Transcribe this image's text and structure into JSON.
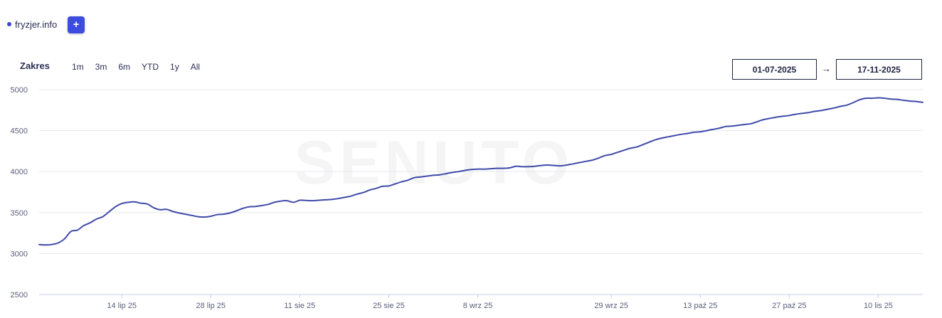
{
  "legend": {
    "label": "fryzjer.info",
    "color": "#3b46d6"
  },
  "add_button": {
    "label": "+"
  },
  "range": {
    "title": "Zakres",
    "options": [
      "1m",
      "3m",
      "6m",
      "YTD",
      "1y",
      "All"
    ]
  },
  "date_range": {
    "from": "01-07-2025",
    "arrow": "→",
    "to": "17-11-2025"
  },
  "watermark": "SENUTO",
  "chart_data": {
    "type": "line",
    "title": "",
    "xlabel": "",
    "ylabel": "",
    "ylim": [
      2500,
      5000
    ],
    "y_ticks": [
      2500,
      3000,
      3500,
      4000,
      4500,
      5000
    ],
    "grid": true,
    "line_color": "#3f4aa8",
    "x_start": "2025-07-01",
    "x_end": "2025-11-17",
    "x_ticks": [
      {
        "date": "2025-07-14",
        "label": "14 lip 25"
      },
      {
        "date": "2025-07-28",
        "label": "28 lip 25"
      },
      {
        "date": "2025-08-11",
        "label": "11 sie 25"
      },
      {
        "date": "2025-08-25",
        "label": "25 sie 25"
      },
      {
        "date": "2025-09-08",
        "label": "8 wrz 25"
      },
      {
        "date": "2025-09-29",
        "label": "29 wrz 25"
      },
      {
        "date": "2025-10-13",
        "label": "13 paź 25"
      },
      {
        "date": "2025-10-27",
        "label": "27 paź 25"
      },
      {
        "date": "2025-11-10",
        "label": "10 lis 25"
      }
    ],
    "series": [
      {
        "points": [
          [
            "2025-07-01",
            3110
          ],
          [
            "2025-07-02",
            3105
          ],
          [
            "2025-07-03",
            3110
          ],
          [
            "2025-07-04",
            3130
          ],
          [
            "2025-07-05",
            3180
          ],
          [
            "2025-07-06",
            3270
          ],
          [
            "2025-07-07",
            3285
          ],
          [
            "2025-07-08",
            3340
          ],
          [
            "2025-07-09",
            3375
          ],
          [
            "2025-07-10",
            3420
          ],
          [
            "2025-07-11",
            3450
          ],
          [
            "2025-07-12",
            3510
          ],
          [
            "2025-07-13",
            3570
          ],
          [
            "2025-07-14",
            3610
          ],
          [
            "2025-07-15",
            3625
          ],
          [
            "2025-07-16",
            3630
          ],
          [
            "2025-07-17",
            3615
          ],
          [
            "2025-07-18",
            3605
          ],
          [
            "2025-07-19",
            3560
          ],
          [
            "2025-07-20",
            3535
          ],
          [
            "2025-07-21",
            3540
          ],
          [
            "2025-07-22",
            3515
          ],
          [
            "2025-07-23",
            3495
          ],
          [
            "2025-07-24",
            3480
          ],
          [
            "2025-07-25",
            3465
          ],
          [
            "2025-07-26",
            3450
          ],
          [
            "2025-07-27",
            3445
          ],
          [
            "2025-07-28",
            3455
          ],
          [
            "2025-07-29",
            3475
          ],
          [
            "2025-07-30",
            3480
          ],
          [
            "2025-07-31",
            3495
          ],
          [
            "2025-08-01",
            3520
          ],
          [
            "2025-08-02",
            3550
          ],
          [
            "2025-08-03",
            3570
          ],
          [
            "2025-08-04",
            3575
          ],
          [
            "2025-08-05",
            3585
          ],
          [
            "2025-08-06",
            3600
          ],
          [
            "2025-08-07",
            3625
          ],
          [
            "2025-08-08",
            3640
          ],
          [
            "2025-08-09",
            3645
          ],
          [
            "2025-08-10",
            3625
          ],
          [
            "2025-08-11",
            3650
          ],
          [
            "2025-08-12",
            3648
          ],
          [
            "2025-08-13",
            3645
          ],
          [
            "2025-08-14",
            3650
          ],
          [
            "2025-08-15",
            3655
          ],
          [
            "2025-08-16",
            3660
          ],
          [
            "2025-08-17",
            3670
          ],
          [
            "2025-08-18",
            3685
          ],
          [
            "2025-08-19",
            3700
          ],
          [
            "2025-08-20",
            3725
          ],
          [
            "2025-08-21",
            3745
          ],
          [
            "2025-08-22",
            3775
          ],
          [
            "2025-08-23",
            3795
          ],
          [
            "2025-08-24",
            3820
          ],
          [
            "2025-08-25",
            3825
          ],
          [
            "2025-08-26",
            3850
          ],
          [
            "2025-08-27",
            3875
          ],
          [
            "2025-08-28",
            3895
          ],
          [
            "2025-08-29",
            3925
          ],
          [
            "2025-08-30",
            3935
          ],
          [
            "2025-08-31",
            3945
          ],
          [
            "2025-09-01",
            3955
          ],
          [
            "2025-09-02",
            3960
          ],
          [
            "2025-09-03",
            3975
          ],
          [
            "2025-09-04",
            3990
          ],
          [
            "2025-09-05",
            4000
          ],
          [
            "2025-09-06",
            4015
          ],
          [
            "2025-09-07",
            4025
          ],
          [
            "2025-09-08",
            4030
          ],
          [
            "2025-09-09",
            4030
          ],
          [
            "2025-09-10",
            4035
          ],
          [
            "2025-09-11",
            4040
          ],
          [
            "2025-09-12",
            4040
          ],
          [
            "2025-09-13",
            4045
          ],
          [
            "2025-09-14",
            4065
          ],
          [
            "2025-09-15",
            4060
          ],
          [
            "2025-09-16",
            4060
          ],
          [
            "2025-09-17",
            4065
          ],
          [
            "2025-09-18",
            4075
          ],
          [
            "2025-09-19",
            4080
          ],
          [
            "2025-09-20",
            4075
          ],
          [
            "2025-09-21",
            4070
          ],
          [
            "2025-09-22",
            4080
          ],
          [
            "2025-09-23",
            4095
          ],
          [
            "2025-09-24",
            4110
          ],
          [
            "2025-09-25",
            4125
          ],
          [
            "2025-09-26",
            4140
          ],
          [
            "2025-09-27",
            4165
          ],
          [
            "2025-09-28",
            4195
          ],
          [
            "2025-09-29",
            4210
          ],
          [
            "2025-09-30",
            4235
          ],
          [
            "2025-10-01",
            4260
          ],
          [
            "2025-10-02",
            4285
          ],
          [
            "2025-10-03",
            4300
          ],
          [
            "2025-10-04",
            4330
          ],
          [
            "2025-10-05",
            4360
          ],
          [
            "2025-10-06",
            4390
          ],
          [
            "2025-10-07",
            4410
          ],
          [
            "2025-10-08",
            4425
          ],
          [
            "2025-10-09",
            4440
          ],
          [
            "2025-10-10",
            4455
          ],
          [
            "2025-10-11",
            4465
          ],
          [
            "2025-10-12",
            4480
          ],
          [
            "2025-10-13",
            4485
          ],
          [
            "2025-10-14",
            4500
          ],
          [
            "2025-10-15",
            4515
          ],
          [
            "2025-10-16",
            4530
          ],
          [
            "2025-10-17",
            4550
          ],
          [
            "2025-10-18",
            4555
          ],
          [
            "2025-10-19",
            4565
          ],
          [
            "2025-10-20",
            4575
          ],
          [
            "2025-10-21",
            4585
          ],
          [
            "2025-10-22",
            4610
          ],
          [
            "2025-10-23",
            4635
          ],
          [
            "2025-10-24",
            4650
          ],
          [
            "2025-10-25",
            4665
          ],
          [
            "2025-10-26",
            4675
          ],
          [
            "2025-10-27",
            4685
          ],
          [
            "2025-10-28",
            4700
          ],
          [
            "2025-10-29",
            4710
          ],
          [
            "2025-10-30",
            4720
          ],
          [
            "2025-10-31",
            4735
          ],
          [
            "2025-11-01",
            4745
          ],
          [
            "2025-11-02",
            4760
          ],
          [
            "2025-11-03",
            4775
          ],
          [
            "2025-11-04",
            4795
          ],
          [
            "2025-11-05",
            4810
          ],
          [
            "2025-11-06",
            4840
          ],
          [
            "2025-11-07",
            4875
          ],
          [
            "2025-11-08",
            4895
          ],
          [
            "2025-11-09",
            4895
          ],
          [
            "2025-11-10",
            4900
          ],
          [
            "2025-11-11",
            4895
          ],
          [
            "2025-11-12",
            4885
          ],
          [
            "2025-11-13",
            4880
          ],
          [
            "2025-11-14",
            4870
          ],
          [
            "2025-11-15",
            4860
          ],
          [
            "2025-11-16",
            4855
          ],
          [
            "2025-11-17",
            4845
          ]
        ]
      }
    ]
  }
}
